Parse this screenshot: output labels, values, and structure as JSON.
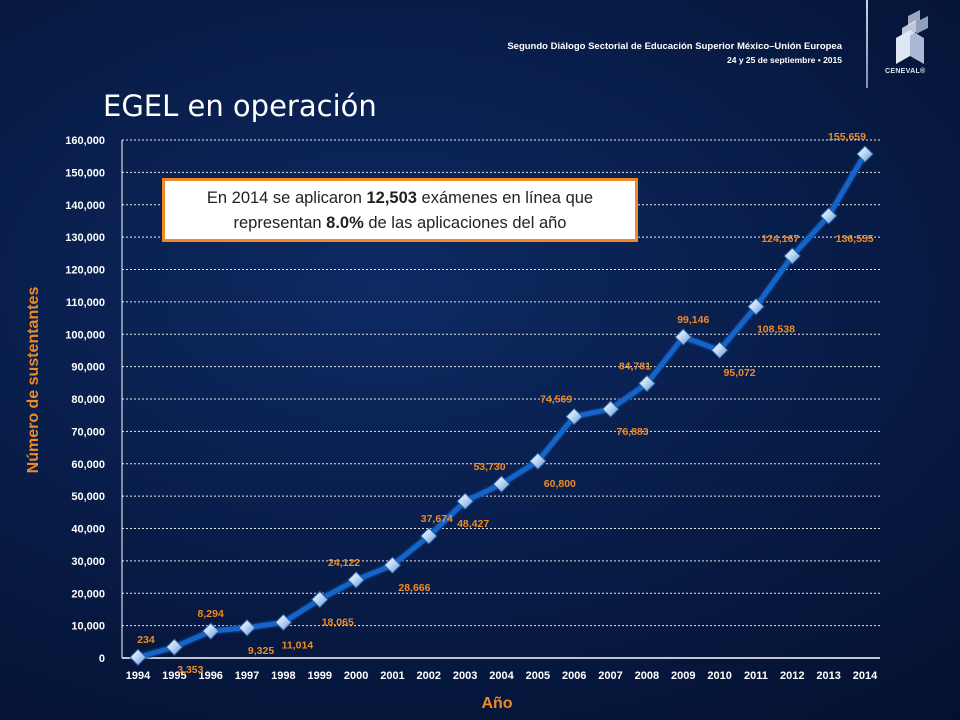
{
  "header": {
    "event": "Segundo Diálogo Sectorial de Educación Superior México–Unión Europea",
    "dates": "24 y 25 de septiembre  •  2015",
    "logo_text": "CENEVAL®"
  },
  "slide_title": "EGEL en operación",
  "callout": {
    "part1": "En 2014 se aplicaron ",
    "value1": "12,503",
    "part2": " exámenes en línea que",
    "part3": "representan ",
    "value2": "8.0%",
    "part4": " de las aplicaciones del año"
  },
  "colors": {
    "line": "#1565c8",
    "label": "#f08a24",
    "axis_title": "#f08a24",
    "grid": "#ffffff"
  },
  "chart_data": {
    "type": "line",
    "xlabel": "Año",
    "ylabel": "Número de sustentantes",
    "ylim": [
      0,
      160000
    ],
    "y_ticks": [
      "0",
      "10,000",
      "20,000",
      "30,000",
      "40,000",
      "50,000",
      "60,000",
      "70,000",
      "80,000",
      "90,000",
      "100,000",
      "110,000",
      "120,000",
      "130,000",
      "140,000",
      "150,000",
      "160,000"
    ],
    "categories": [
      "1994",
      "1995",
      "1996",
      "1997",
      "1998",
      "1999",
      "2000",
      "2001",
      "2002",
      "2003",
      "2004",
      "2005",
      "2006",
      "2007",
      "2008",
      "2009",
      "2010",
      "2011",
      "2012",
      "2013",
      "2014"
    ],
    "values": [
      234,
      3353,
      8294,
      9325,
      11014,
      18065,
      24122,
      28666,
      37674,
      48427,
      53730,
      60800,
      74569,
      76883,
      84781,
      99146,
      95072,
      108538,
      124167,
      136555,
      155659
    ],
    "data_labels": [
      "234",
      "3,353",
      "8,294",
      "9,325",
      "11,014",
      "18,065",
      "24,122",
      "28,666",
      "37,674",
      "48,427",
      "53,730",
      "60,800",
      "74,569",
      "76,883",
      "84,781",
      "99,146",
      "95,072",
      "108,538",
      "124,167",
      "136,555",
      "155,659"
    ],
    "grid": true,
    "legend": "none"
  }
}
